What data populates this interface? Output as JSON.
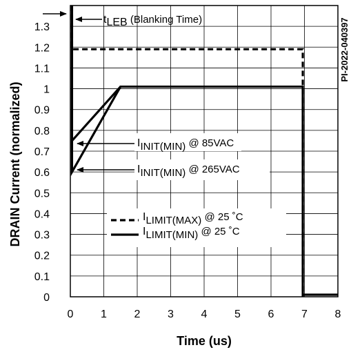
{
  "chart_data": {
    "type": "line",
    "x_label": "Time (us)",
    "y_label": "DRAIN Current   (normalized)",
    "xlim": [
      0,
      8
    ],
    "ylim": [
      0,
      1.4
    ],
    "x_ticks": [
      "0",
      "1",
      "2",
      "3",
      "4",
      "5",
      "6",
      "7",
      "8"
    ],
    "y_ticks": [
      "0",
      "0.1",
      "0.2",
      "0.3",
      "0.4",
      "0.5",
      "0.6",
      "0.7",
      "0.8",
      "0.9",
      "1",
      "1.1",
      "1.2",
      "1.3"
    ],
    "grid": true,
    "series": [
      {
        "name": "ILIMIT(MAX) @ 25 ˚C",
        "style": "dashed",
        "x": [
          0.05,
          0.05,
          6.95,
          6.95
        ],
        "y": [
          1.4,
          1.19,
          1.19,
          0.0
        ]
      },
      {
        "name": "ILIMIT(MIN) @ 25 ˚C",
        "style": "solid",
        "x": [
          0.05,
          0.05,
          1.5,
          6.95,
          6.95,
          8.0
        ],
        "y": [
          1.4,
          0.6,
          1.01,
          1.01,
          0.01,
          0.01
        ]
      },
      {
        "name": "85VAC initial ramp",
        "style": "solid",
        "x": [
          0.05,
          1.5
        ],
        "y": [
          0.75,
          1.01
        ]
      }
    ],
    "annotations": {
      "leb": {
        "main": "t",
        "sub": "LEB",
        "rest": " (Blanking Time)"
      },
      "init85": {
        "main": "I",
        "sub": "INIT(MIN)",
        "rest": " @ 85VAC"
      },
      "init265": {
        "main": "I",
        "sub": "INIT(MIN)",
        "rest": " @ 265VAC"
      },
      "legend_max": {
        "main": "I",
        "sub": "LIMIT(MAX)",
        "rest": " @ 25 ˚C"
      },
      "legend_min": {
        "main": "I",
        "sub": "LIMIT(MIN)",
        "rest": " @ 25 ˚C"
      }
    },
    "figure_id": "PI-2022-040397"
  }
}
